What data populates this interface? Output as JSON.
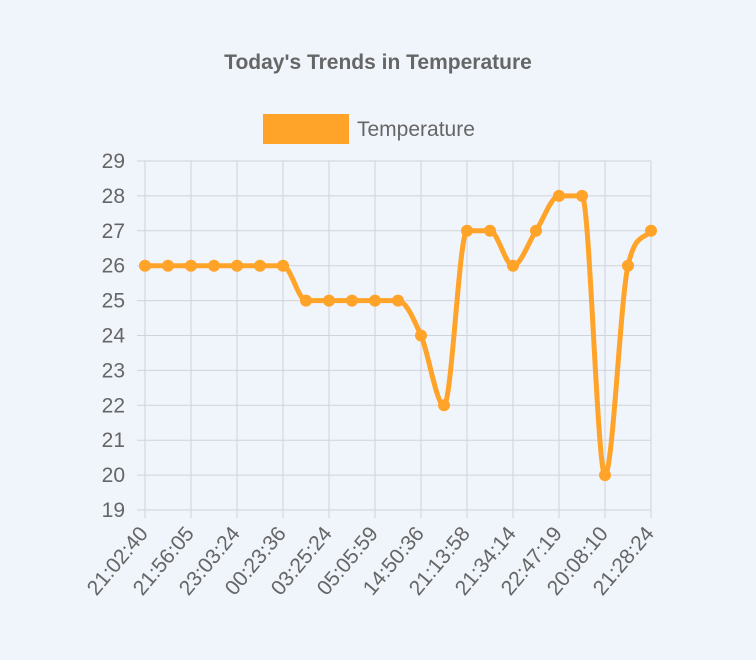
{
  "chart_data": {
    "type": "line",
    "title": "Today's Trends in Temperature",
    "xlabel": "",
    "ylabel": "",
    "legend_position": "top",
    "grid": true,
    "ylim": [
      19,
      29
    ],
    "y_ticks": [
      19,
      20,
      21,
      22,
      23,
      24,
      25,
      26,
      27,
      28,
      29
    ],
    "x_tick_labels": [
      "21:02:40",
      "21:56:05",
      "23:03:24",
      "00:23:36",
      "03:25:24",
      "05:05:59",
      "14:50:36",
      "21:13:58",
      "21:34:14",
      "22:47:19",
      "20:08:10",
      "21:28:24"
    ],
    "x_tick_indices": [
      0,
      2,
      4,
      6,
      8,
      10,
      12,
      14,
      16,
      18,
      20,
      22
    ],
    "series": [
      {
        "name": "Temperature",
        "color": "#ffa329",
        "values": [
          26,
          26,
          26,
          26,
          26,
          26,
          26,
          25,
          25,
          25,
          25,
          25,
          24,
          22,
          27,
          27,
          26,
          27,
          28,
          28,
          20,
          26,
          27
        ]
      }
    ]
  },
  "colors": {
    "background": "#f0f5fc",
    "grid": "#d0d3d8",
    "text": "#666666",
    "series": "#ffa329"
  }
}
